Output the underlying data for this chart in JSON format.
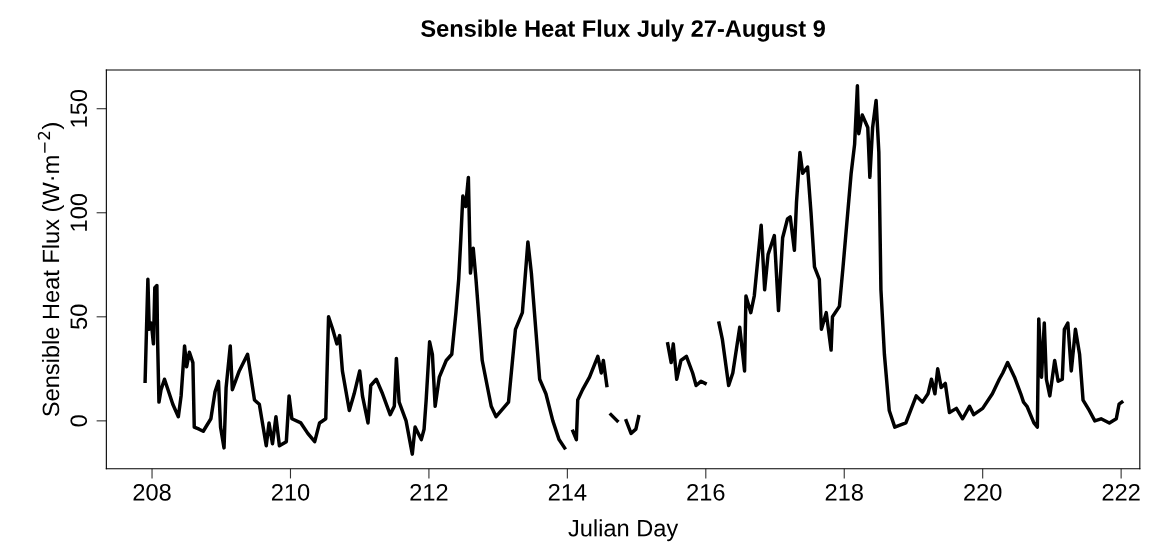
{
  "chart_data": {
    "type": "line",
    "title": "Sensible Heat Flux July 27-August 9",
    "xlabel": "Julian Day",
    "ylabel": "Sensible Heat Flux (W·m$^{−2}$)",
    "xlim": [
      207.34,
      222.27
    ],
    "ylim": [
      -23,
      168.6
    ],
    "xticks": [
      208,
      210,
      212,
      214,
      216,
      218,
      220,
      222
    ],
    "yticks": [
      0,
      50,
      100,
      150
    ],
    "grid": false,
    "legend": false,
    "marker": "none",
    "line_style": "solid",
    "series": [
      {
        "color": "#000000",
        "x": [
          207.9,
          207.92,
          207.94,
          207.96,
          207.99,
          208.02,
          208.04,
          208.07,
          208.08,
          208.1,
          208.13,
          208.18,
          208.25,
          208.3,
          208.38,
          208.42,
          208.47,
          208.5,
          208.54,
          208.59,
          208.61,
          208.68,
          208.74,
          208.85,
          208.91,
          208.96,
          208.99,
          209.04,
          209.07,
          209.13,
          209.16,
          209.26,
          209.38,
          209.48,
          209.55,
          209.65,
          209.69,
          209.74,
          209.79,
          209.84,
          209.94,
          209.98,
          210.02,
          210.15,
          210.25,
          210.35,
          210.42,
          210.51,
          210.55,
          210.61,
          210.67,
          210.71,
          210.75,
          210.85,
          210.92,
          211.0,
          211.04,
          211.12,
          211.16,
          211.24,
          211.33,
          211.44,
          211.5,
          211.53,
          211.57,
          211.67,
          211.76,
          211.8,
          211.89,
          211.93,
          211.96,
          212.01,
          212.05,
          212.09,
          212.15,
          212.25,
          212.33,
          212.39,
          212.43,
          212.46,
          212.49,
          212.53,
          212.57,
          212.6,
          212.64,
          212.68,
          212.77,
          212.9,
          212.97,
          213.15,
          213.25,
          213.35,
          213.43,
          213.48,
          213.6,
          213.69,
          213.79,
          213.88,
          213.96,
          214.02,
          214.08,
          214.13,
          214.15,
          214.22,
          214.32,
          214.44,
          214.49,
          214.52,
          214.57,
          214.6,
          214.63,
          214.72,
          214.78,
          214.85,
          214.92,
          214.99,
          215.03,
          215.24,
          215.45,
          215.5,
          215.53,
          215.58,
          215.64,
          215.72,
          215.81,
          215.86,
          215.93,
          215.99,
          216.09,
          216.19,
          216.24,
          216.33,
          216.39,
          216.49,
          216.56,
          216.58,
          216.65,
          216.7,
          216.8,
          216.85,
          216.9,
          216.99,
          217.05,
          217.11,
          217.18,
          217.22,
          217.28,
          217.31,
          217.36,
          217.4,
          217.47,
          217.52,
          217.57,
          217.64,
          217.67,
          217.74,
          217.81,
          217.83,
          217.93,
          217.98,
          218.1,
          218.15,
          218.19,
          218.21,
          218.26,
          218.34,
          218.37,
          218.41,
          218.46,
          218.5,
          218.53,
          218.58,
          218.65,
          218.73,
          218.89,
          219.04,
          219.13,
          219.21,
          219.26,
          219.31,
          219.35,
          219.4,
          219.46,
          219.52,
          219.62,
          219.71,
          219.81,
          219.87,
          220.0,
          220.14,
          220.24,
          220.29,
          220.36,
          220.46,
          220.55,
          220.59,
          220.64,
          220.74,
          220.79,
          220.81,
          220.85,
          220.89,
          220.92,
          220.97,
          221.04,
          221.09,
          221.15,
          221.18,
          221.23,
          221.28,
          221.34,
          221.4,
          221.45,
          221.54,
          221.62,
          221.71,
          221.83,
          221.93,
          221.97,
          222.01
        ],
        "values": [
          19,
          44,
          68,
          44,
          47,
          37,
          64,
          65,
          39,
          9,
          15,
          20,
          13,
          8,
          2,
          12,
          36,
          26,
          33,
          28,
          -3,
          -4,
          -5,
          1,
          14,
          19,
          -3,
          -13,
          16,
          36,
          15,
          24,
          32,
          10,
          8,
          -12,
          -1,
          -11,
          2,
          -12,
          -10,
          12,
          1,
          -1,
          -6,
          -10,
          -1,
          1,
          50,
          44,
          37,
          41,
          24,
          5,
          13,
          24,
          12,
          -1,
          17,
          20,
          13,
          3,
          7,
          30,
          9,
          0,
          -16,
          -3,
          -9,
          -4,
          10,
          38,
          32,
          7,
          21,
          29,
          32,
          52,
          68,
          87,
          108,
          103,
          117,
          71,
          83,
          68,
          29,
          7,
          2,
          9,
          44,
          52,
          86,
          71,
          20,
          13,
          0,
          -9,
          -13,
          null,
          -5,
          -9,
          10,
          15,
          21,
          31,
          23,
          29,
          17,
          null,
          3,
          0,
          null,
          0,
          -6,
          -4,
          2,
          null,
          37,
          28,
          37,
          20,
          29,
          31,
          23,
          17,
          19,
          18,
          null,
          47,
          39,
          17,
          23,
          45,
          24,
          60,
          52,
          60,
          94,
          63,
          80,
          89,
          53,
          88,
          97,
          98,
          82,
          105,
          129,
          119,
          122,
          100,
          74,
          68,
          44,
          52,
          34,
          50,
          55,
          73,
          119,
          133,
          161,
          138,
          147,
          141,
          117,
          141,
          154,
          129,
          63,
          32,
          5,
          -3,
          -1,
          12,
          9,
          13,
          20,
          13,
          25,
          16,
          18,
          4,
          6,
          1,
          7,
          3,
          6,
          13,
          20,
          23,
          28,
          21,
          13,
          9,
          7,
          -1,
          -3,
          49,
          21,
          47,
          20,
          12,
          29,
          19,
          20,
          44,
          47,
          24,
          44,
          32,
          10,
          5,
          0,
          1,
          -1,
          1,
          8,
          9
        ]
      }
    ]
  }
}
